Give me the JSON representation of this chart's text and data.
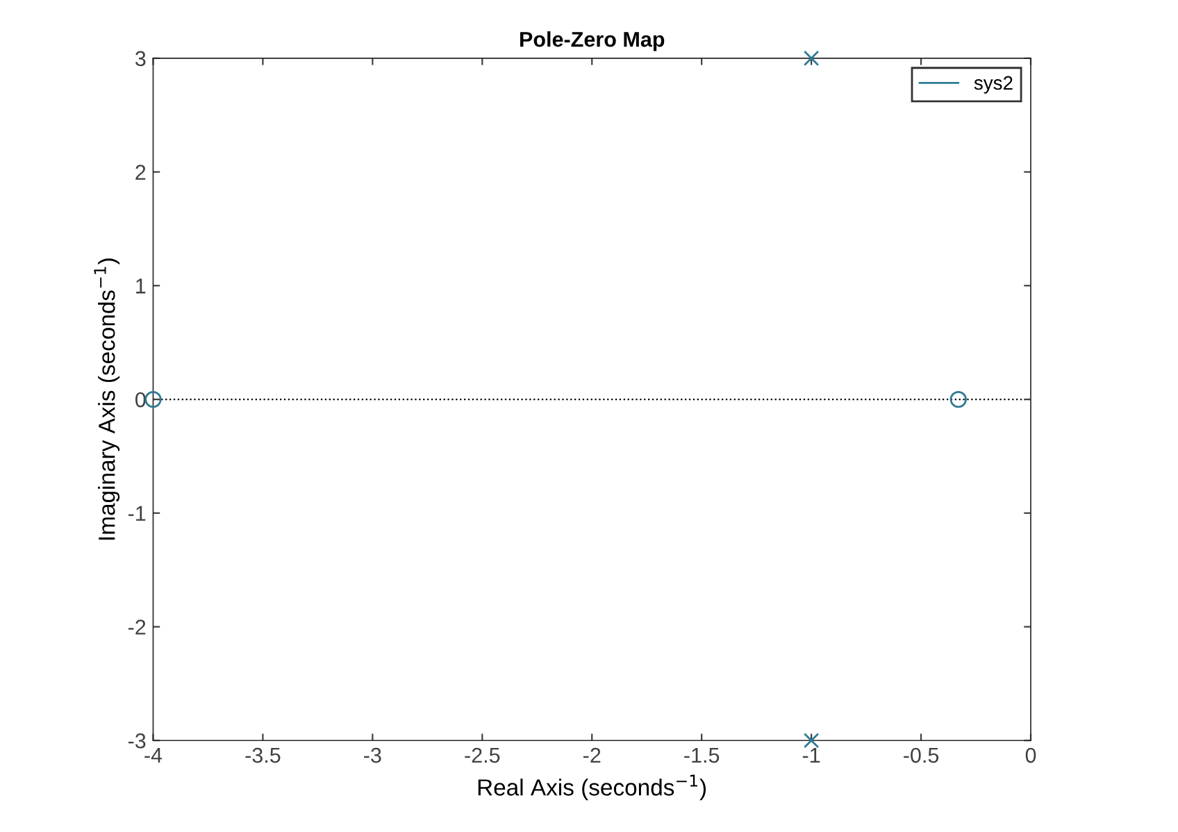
{
  "chart_data": {
    "type": "scatter",
    "title": "Pole-Zero Map",
    "xlabel": "Real Axis (seconds$^{−1}$)",
    "ylabel": "Imaginary Axis (seconds$^{−1}$)",
    "series": [
      {
        "name": "sys2",
        "marker": "cross",
        "color": "#2e7b94",
        "x": [
          -1,
          -1
        ],
        "values": [
          3,
          -3
        ]
      },
      {
        "marker": "circle",
        "color": "#2e7b94",
        "x": [
          -4,
          -0.33
        ],
        "values": [
          0,
          0
        ]
      }
    ],
    "xlim": [
      -4,
      0
    ],
    "ylim": [
      -3,
      3
    ],
    "xticks": [
      -4,
      -3.5,
      -3,
      -2.5,
      -2,
      -1.5,
      -1,
      -0.5,
      0
    ],
    "yticks": [
      -3,
      -2,
      -1,
      0,
      1,
      2,
      3
    ],
    "ref_lines": [
      {
        "axis": "y",
        "value": 0,
        "color": "#000000",
        "line_style": "dotted"
      }
    ],
    "grid": false,
    "legend": "top right"
  }
}
